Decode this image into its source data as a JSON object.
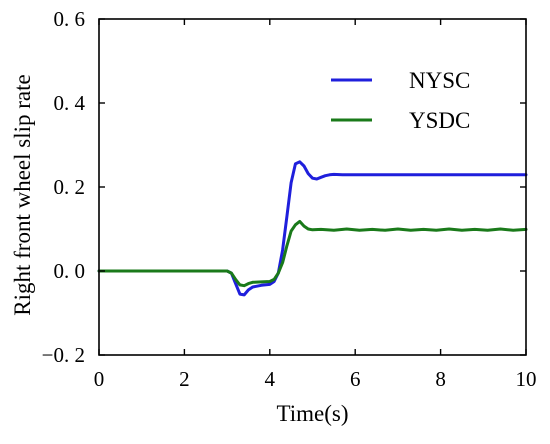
{
  "chart_data": {
    "type": "line",
    "xlabel": "Time(s)",
    "ylabel": "Right front wheel slip rate",
    "xlim": [
      0,
      10
    ],
    "ylim": [
      -0.2,
      0.6
    ],
    "xticks": [
      0,
      2,
      4,
      6,
      8,
      10
    ],
    "xtick_labels": [
      "0",
      "2",
      "4",
      "6",
      "8",
      "10"
    ],
    "yticks": [
      -0.2,
      0.0,
      0.2,
      0.4,
      0.6
    ],
    "ytick_labels": [
      "−0. 2",
      "0. 0",
      "0. 2",
      "0. 4",
      "0. 6"
    ],
    "grid": false,
    "legend_position": "top-right",
    "series": [
      {
        "name": "NYSC",
        "color": "#1f1fdc",
        "x": [
          0,
          3.0,
          3.1,
          3.2,
          3.3,
          3.4,
          3.5,
          3.6,
          3.8,
          4.0,
          4.1,
          4.2,
          4.3,
          4.4,
          4.5,
          4.6,
          4.7,
          4.8,
          4.9,
          5.0,
          5.1,
          5.2,
          5.3,
          5.4,
          5.5,
          5.7,
          6.0,
          7.0,
          8.0,
          9.0,
          10.0
        ],
        "y": [
          0,
          0,
          -0.005,
          -0.03,
          -0.055,
          -0.057,
          -0.045,
          -0.038,
          -0.034,
          -0.032,
          -0.025,
          -0.005,
          0.05,
          0.13,
          0.21,
          0.255,
          0.26,
          0.25,
          0.232,
          0.221,
          0.219,
          0.223,
          0.227,
          0.229,
          0.23,
          0.229,
          0.229,
          0.229,
          0.229,
          0.229,
          0.229
        ]
      },
      {
        "name": "YSDC",
        "color": "#1a7a1a",
        "x": [
          0,
          3.0,
          3.1,
          3.2,
          3.3,
          3.4,
          3.5,
          3.6,
          3.8,
          4.0,
          4.1,
          4.2,
          4.3,
          4.4,
          4.5,
          4.6,
          4.7,
          4.8,
          4.9,
          5.0,
          5.2,
          5.5,
          5.8,
          6.1,
          6.4,
          6.7,
          7.0,
          7.3,
          7.6,
          7.9,
          8.2,
          8.5,
          8.8,
          9.1,
          9.4,
          9.7,
          10.0
        ],
        "y": [
          0,
          0,
          -0.005,
          -0.02,
          -0.033,
          -0.035,
          -0.03,
          -0.027,
          -0.026,
          -0.025,
          -0.02,
          -0.005,
          0.02,
          0.06,
          0.095,
          0.11,
          0.118,
          0.107,
          0.1,
          0.098,
          0.099,
          0.097,
          0.1,
          0.097,
          0.099,
          0.097,
          0.1,
          0.097,
          0.099,
          0.097,
          0.1,
          0.097,
          0.099,
          0.097,
          0.1,
          0.097,
          0.099
        ]
      }
    ]
  }
}
